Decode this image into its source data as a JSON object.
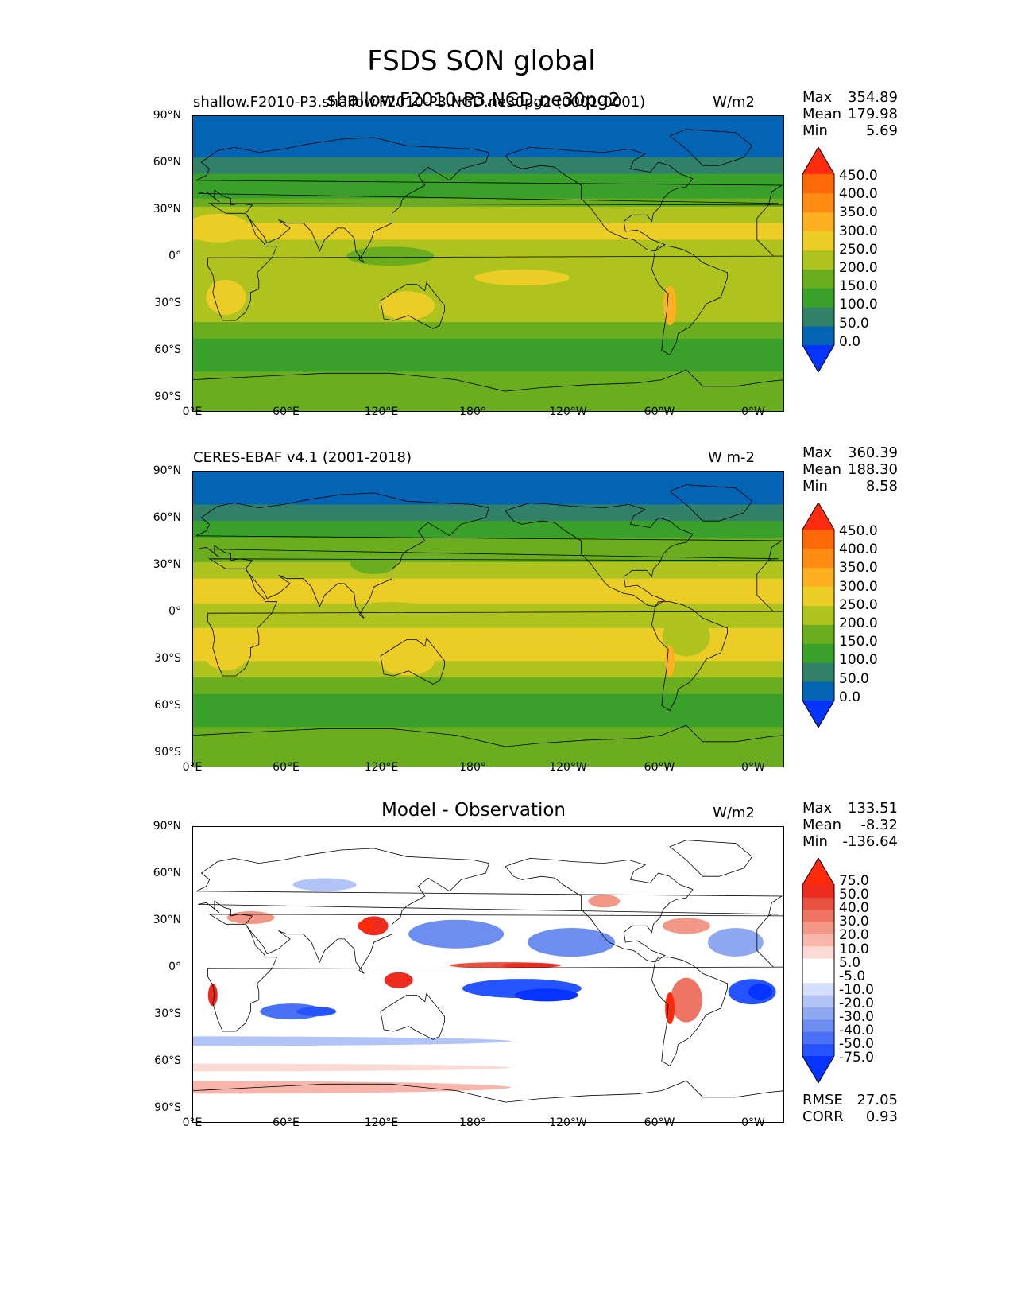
{
  "figure": {
    "title": "FSDS SON global"
  },
  "colors": {
    "seq": [
      "#0534ff",
      "#0464b4",
      "#318068",
      "#39a02a",
      "#6aad1e",
      "#afc31f",
      "#ebcd25",
      "#fdb121",
      "#fe8c13",
      "#fe6807",
      "#ff2b11"
    ],
    "div": [
      "#0533ff",
      "#2453ff",
      "#4a71f5",
      "#6c8ef0",
      "#8ea9f2",
      "#b2c3f7",
      "#d5dffc",
      "#ffffff",
      "#ffffff",
      "#fbdad5",
      "#f8b5ab",
      "#f39787",
      "#ee7463",
      "#e85142",
      "#ed2b1f",
      "#ff2a0a"
    ]
  },
  "chart_data": [
    {
      "type": "heatmap",
      "title_left": "shallow.F2010-P3.shallow.F2010-P3.NGD.ne30pg2 (0001-0001)",
      "title_center": "shallow.F2010-P3.NGD.ne30pg2",
      "units": "W/m2",
      "stats": {
        "max_label": "Max",
        "max": "354.89",
        "mean_label": "Mean",
        "mean": "179.98",
        "min_label": "Min",
        "min": "5.69"
      },
      "xticks": [
        "0°E",
        "60°E",
        "120°E",
        "180°",
        "120°W",
        "60°W",
        "0°W"
      ],
      "yticks": [
        "90°N",
        "60°N",
        "30°N",
        "0°",
        "30°S",
        "60°S",
        "90°S"
      ],
      "colorbar_levels": [
        "450.0",
        "400.0",
        "350.0",
        "300.0",
        "250.0",
        "200.0",
        "150.0",
        "100.0",
        "50.0",
        "0.0"
      ],
      "zonal_profile": {
        "lat": [
          90,
          80,
          70,
          65,
          60,
          55,
          50,
          45,
          40,
          35,
          30,
          25,
          20,
          15,
          10,
          5,
          0,
          -5,
          -10,
          -15,
          -20,
          -25,
          -30,
          -35,
          -40,
          -45,
          -50,
          -55,
          -60,
          -65,
          -70,
          -75,
          -80,
          -90
        ],
        "value": [
          40,
          40,
          40,
          55,
          80,
          95,
          115,
          135,
          160,
          190,
          215,
          245,
          255,
          245,
          220,
          205,
          200,
          210,
          220,
          235,
          245,
          240,
          225,
          200,
          170,
          140,
          115,
          105,
          110,
          140,
          165,
          180,
          185,
          185
        ]
      }
    },
    {
      "type": "heatmap",
      "title_left": "CERES-EBAF v4.1 (2001-2018)",
      "units": "W m-2",
      "stats": {
        "max_label": "Max",
        "max": "360.39",
        "mean_label": "Mean",
        "mean": "188.30",
        "min_label": "Min",
        "min": "8.58"
      },
      "xticks": [
        "0°E",
        "60°E",
        "120°E",
        "180°",
        "120°W",
        "60°W",
        "0°W"
      ],
      "yticks": [
        "90°N",
        "60°N",
        "30°N",
        "0°",
        "30°S",
        "60°S",
        "90°S"
      ],
      "colorbar_levels": [
        "450.0",
        "400.0",
        "350.0",
        "300.0",
        "250.0",
        "200.0",
        "150.0",
        "100.0",
        "50.0",
        "0.0"
      ],
      "zonal_profile": {
        "lat": [
          90,
          80,
          70,
          65,
          60,
          55,
          50,
          45,
          40,
          35,
          30,
          25,
          20,
          15,
          10,
          5,
          0,
          -5,
          -10,
          -15,
          -20,
          -25,
          -30,
          -35,
          -40,
          -45,
          -50,
          -55,
          -60,
          -65,
          -70,
          -75,
          -80,
          -90
        ],
        "value": [
          40,
          40,
          45,
          75,
          95,
          120,
          140,
          160,
          185,
          210,
          235,
          255,
          265,
          260,
          245,
          235,
          240,
          255,
          265,
          270,
          265,
          250,
          230,
          205,
          175,
          150,
          125,
          115,
          120,
          150,
          175,
          185,
          185,
          185
        ]
      }
    },
    {
      "type": "heatmap",
      "title_center": "Model - Observation",
      "units": "W/m2",
      "stats": {
        "max_label": "Max",
        "max": "133.51",
        "mean_label": "Mean",
        "mean": "-8.32",
        "min_label": "Min",
        "min": "-136.64"
      },
      "xticks": [
        "0°E",
        "60°E",
        "120°E",
        "180°",
        "120°W",
        "60°W",
        "0°W"
      ],
      "yticks": [
        "90°N",
        "60°N",
        "30°N",
        "0°",
        "30°S",
        "60°S",
        "90°S"
      ],
      "colorbar_levels": [
        "75.0",
        "50.0",
        "40.0",
        "30.0",
        "20.0",
        "10.0",
        "5.0",
        "-5.0",
        "-10.0",
        "-20.0",
        "-30.0",
        "-40.0",
        "-50.0",
        "-75.0"
      ],
      "metrics": {
        "rmse_label": "RMSE",
        "rmse": "27.05",
        "corr_label": "CORR",
        "corr": "0.93"
      }
    }
  ]
}
